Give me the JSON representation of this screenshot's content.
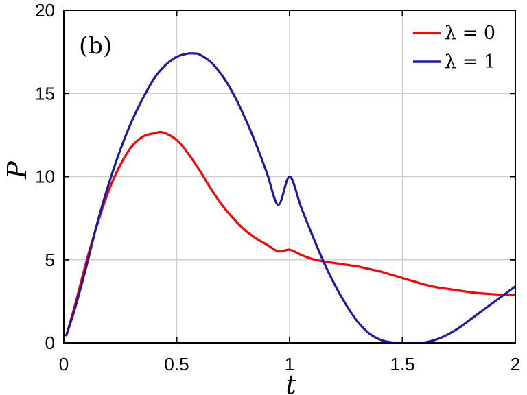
{
  "chart_data": {
    "type": "line",
    "panel_label": "(b)",
    "xlabel": "t",
    "ylabel": "P",
    "xlim": [
      0,
      2
    ],
    "ylim": [
      0,
      20
    ],
    "xticks": [
      0,
      0.5,
      1,
      1.5,
      2
    ],
    "xtick_labels": [
      "0",
      "0.5",
      "1",
      "1.5",
      "2"
    ],
    "yticks": [
      0,
      5,
      10,
      15,
      20
    ],
    "ytick_labels": [
      "0",
      "5",
      "10",
      "15",
      "20"
    ],
    "grid": true,
    "legend_position": "top-right",
    "series": [
      {
        "name": "λ = 0",
        "color": "#ff0000",
        "x": [
          0.01,
          0.05,
          0.1,
          0.15,
          0.2,
          0.25,
          0.3,
          0.35,
          0.4,
          0.44,
          0.5,
          0.55,
          0.6,
          0.65,
          0.7,
          0.75,
          0.8,
          0.85,
          0.9,
          0.95,
          1.0,
          1.05,
          1.1,
          1.15,
          1.2,
          1.25,
          1.3,
          1.35,
          1.4,
          1.45,
          1.5,
          1.55,
          1.6,
          1.65,
          1.7,
          1.75,
          1.8,
          1.85,
          1.9,
          1.95,
          2.0
        ],
        "y": [
          0.4,
          2.3,
          4.9,
          7.2,
          9.2,
          10.7,
          11.8,
          12.4,
          12.6,
          12.65,
          12.2,
          11.4,
          10.4,
          9.3,
          8.3,
          7.5,
          6.8,
          6.3,
          5.9,
          5.5,
          5.6,
          5.3,
          5.05,
          4.9,
          4.8,
          4.7,
          4.6,
          4.45,
          4.3,
          4.1,
          3.9,
          3.7,
          3.5,
          3.35,
          3.25,
          3.15,
          3.05,
          2.98,
          2.93,
          2.9,
          2.9
        ]
      },
      {
        "name": "λ = 1",
        "color": "#1a1aaa",
        "x": [
          0.01,
          0.05,
          0.1,
          0.15,
          0.2,
          0.25,
          0.3,
          0.35,
          0.4,
          0.45,
          0.5,
          0.55,
          0.58,
          0.6,
          0.65,
          0.7,
          0.75,
          0.8,
          0.85,
          0.9,
          0.95,
          1.0,
          1.05,
          1.1,
          1.15,
          1.2,
          1.25,
          1.3,
          1.35,
          1.4,
          1.45,
          1.5,
          1.55,
          1.58,
          1.6,
          1.65,
          1.7,
          1.75,
          1.8,
          1.85,
          1.9,
          1.95,
          2.0
        ],
        "y": [
          0.4,
          2.1,
          4.6,
          7.3,
          9.6,
          11.6,
          13.3,
          14.7,
          15.9,
          16.7,
          17.2,
          17.4,
          17.4,
          17.35,
          16.9,
          16.1,
          15.0,
          13.6,
          12.0,
          10.2,
          8.3,
          10.0,
          8.2,
          6.5,
          4.9,
          3.5,
          2.3,
          1.3,
          0.6,
          0.2,
          0.03,
          0.0,
          0.0,
          0.0,
          0.03,
          0.2,
          0.5,
          0.9,
          1.4,
          1.9,
          2.4,
          2.9,
          3.4
        ]
      }
    ]
  }
}
